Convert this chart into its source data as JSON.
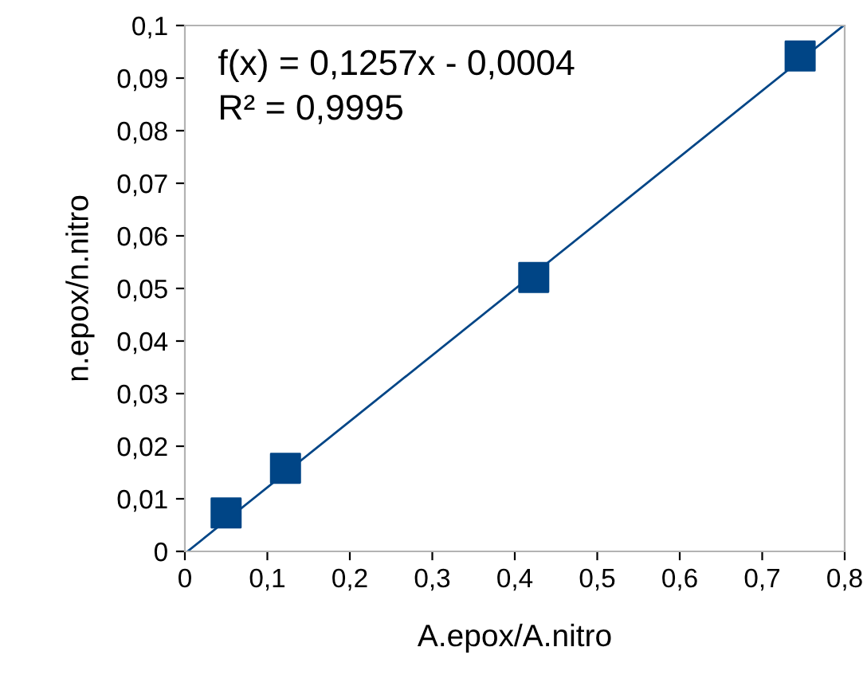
{
  "chart_data": {
    "type": "scatter",
    "xlabel": "A.epox/A.nitro",
    "ylabel": "n.epox/n.nitro",
    "x": [
      0.05,
      0.122,
      0.423,
      0.746
    ],
    "series": [
      {
        "color": "#004586",
        "marker": "square",
        "values": [
          0.0073,
          0.0158,
          0.0521,
          0.0942
        ]
      },
      {
        "type": "line",
        "color": "#004586",
        "marker": "none",
        "line_style": "solid",
        "x": [
          0.0032,
          0.7987
        ],
        "values": [
          0,
          0.1
        ]
      }
    ],
    "annotations": [
      "f(x) = 0,1257x - 0,0004",
      "R² = 0,9995"
    ],
    "xlim": [
      0,
      0.8
    ],
    "xticks": [
      0,
      {
        "value": 0.1,
        "label": "0,1"
      },
      {
        "value": 0.2,
        "label": "0,2"
      },
      {
        "value": 0.3,
        "label": "0,3"
      },
      {
        "value": 0.4,
        "label": "0,4"
      },
      {
        "value": 0.5,
        "label": "0,5"
      },
      {
        "value": 0.6,
        "label": "0,6"
      },
      {
        "value": 0.7,
        "label": "0,7"
      },
      {
        "value": 0.8,
        "label": "0,8"
      }
    ],
    "ylim": [
      0,
      0.1
    ],
    "yticks": [
      0,
      {
        "value": 0.01,
        "label": "0,01"
      },
      {
        "value": 0.02,
        "label": "0,02"
      },
      {
        "value": 0.03,
        "label": "0,03"
      },
      {
        "value": 0.04,
        "label": "0,04"
      },
      {
        "value": 0.05,
        "label": "0,05"
      },
      {
        "value": 0.06,
        "label": "0,06"
      },
      {
        "value": 0.07,
        "label": "0,07"
      },
      {
        "value": 0.08,
        "label": "0,08"
      },
      {
        "value": 0.09,
        "label": "0,09"
      },
      {
        "value": 0.1,
        "label": "0,1"
      }
    ],
    "grid": false
  }
}
